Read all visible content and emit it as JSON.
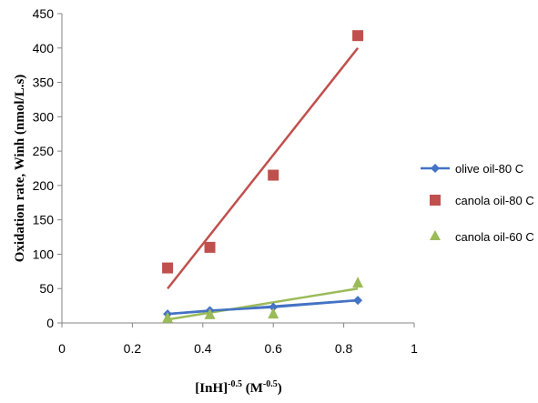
{
  "chart_data": {
    "type": "scatter",
    "ylabel": "Oxidation rate, Winh (nmol/L.s)",
    "xlabel": {
      "part1": "[InH]",
      "part1_exp": "-0.5",
      "part2": " (M",
      "part2_exp": "-0.5",
      "part3": ")"
    },
    "xlim": [
      0,
      1
    ],
    "ylim": [
      0,
      450
    ],
    "xticks": [
      "0",
      "0.2",
      "0.4",
      "0.6",
      "0.8",
      "1"
    ],
    "xtick_values": [
      0,
      0.2,
      0.4,
      0.6,
      0.8,
      1
    ],
    "yticks": [
      "0",
      "50",
      "100",
      "150",
      "200",
      "250",
      "300",
      "350",
      "400",
      "450"
    ],
    "ytick_values": [
      0,
      50,
      100,
      150,
      200,
      250,
      300,
      350,
      400,
      450
    ],
    "grid": false,
    "legend_position": "right",
    "series": [
      {
        "name": "olive oil-80 C",
        "color": "#4472C4",
        "marker": "diamond",
        "connected": true,
        "points": [
          [
            0.3,
            13
          ],
          [
            0.42,
            18
          ],
          [
            0.6,
            23
          ],
          [
            0.84,
            33
          ]
        ],
        "trend": [
          [
            0.3,
            13
          ],
          [
            0.84,
            33
          ]
        ]
      },
      {
        "name": "canola oil-80 C",
        "color": "#C0504D",
        "marker": "square",
        "connected": false,
        "points": [
          [
            0.3,
            80
          ],
          [
            0.42,
            110
          ],
          [
            0.6,
            215
          ],
          [
            0.84,
            418
          ]
        ],
        "trend": [
          [
            0.3,
            50
          ],
          [
            0.84,
            400
          ]
        ]
      },
      {
        "name": "canola oil-60 C",
        "color": "#9BBB59",
        "marker": "triangle",
        "connected": false,
        "points": [
          [
            0.3,
            7
          ],
          [
            0.42,
            12
          ],
          [
            0.6,
            13
          ],
          [
            0.84,
            58
          ]
        ],
        "trend": [
          [
            0.3,
            5
          ],
          [
            0.84,
            50
          ]
        ]
      }
    ]
  }
}
